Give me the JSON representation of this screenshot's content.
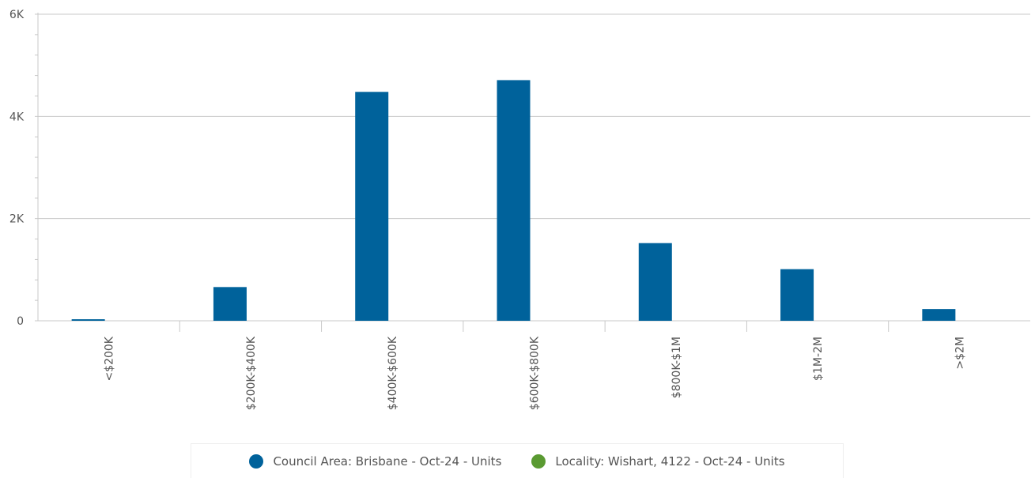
{
  "chart_data": {
    "type": "bar",
    "categories": [
      "<$200K",
      "$200K-$400K",
      "$400K-$600K",
      "$600K-$800K",
      "$800K-$1M",
      "$1M-2M",
      ">$2M"
    ],
    "series": [
      {
        "name": "Council Area: Brisbane - Oct-24 - Units",
        "color": "#00629b",
        "values": [
          30,
          660,
          4480,
          4710,
          1520,
          1010,
          230
        ]
      },
      {
        "name": "Locality: Wishart, 4122 - Oct-24 - Units",
        "color": "#5a9a32",
        "values": [
          0,
          0,
          0,
          0,
          0,
          0,
          0
        ]
      }
    ],
    "ylim": [
      0,
      6000
    ],
    "yticks": [
      {
        "value": 0,
        "label": "0"
      },
      {
        "value": 2000,
        "label": "2K"
      },
      {
        "value": 4000,
        "label": "4K"
      },
      {
        "value": 6000,
        "label": "6K"
      }
    ],
    "grid": true,
    "legend_position": "bottom-center",
    "title": "",
    "xlabel": "",
    "ylabel": ""
  }
}
